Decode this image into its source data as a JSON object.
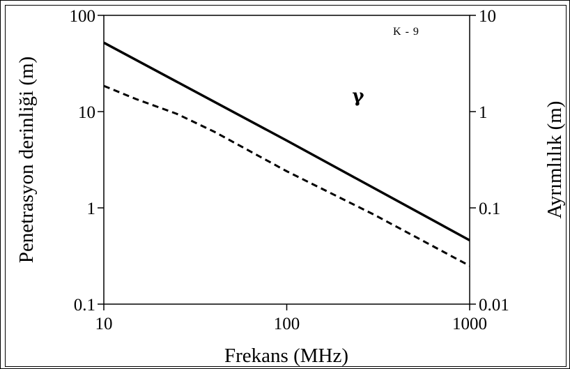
{
  "chart_data": {
    "type": "line",
    "xscale": "log",
    "yscale": "log",
    "y2scale": "log",
    "x_ticks": [
      10,
      100,
      1000
    ],
    "x_tick_labels": [
      "10",
      "100",
      "1000"
    ],
    "y_ticks": [
      0.1,
      1,
      10,
      100
    ],
    "y_tick_labels": [
      "0.1",
      "1",
      "10",
      "100"
    ],
    "y2_ticks": [
      0.01,
      0.1,
      1,
      10
    ],
    "y2_tick_labels": [
      "0.01",
      "0.1",
      "1",
      "10"
    ],
    "xlim": [
      10,
      1000
    ],
    "ylim": [
      0.1,
      100
    ],
    "y2lim": [
      0.01,
      10
    ],
    "xlabel": "Frekans (MHz)",
    "ylabel": "Penetrasyon derinliği (m)",
    "y2label": "Ayrımlılık (m)",
    "annotations": [
      "K - 9",
      "γ"
    ],
    "grid": false,
    "series": [
      {
        "style": "solid",
        "axis": "y",
        "color": "#000000",
        "x": [
          10,
          100,
          1000
        ],
        "y": [
          52,
          5,
          0.46
        ]
      },
      {
        "style": "dashed",
        "axis": "y2",
        "color": "#000000",
        "x": [
          10,
          15,
          25,
          40,
          100,
          300,
          1000
        ],
        "y": [
          1.85,
          1.35,
          0.95,
          0.62,
          0.24,
          0.085,
          0.025
        ]
      }
    ]
  }
}
